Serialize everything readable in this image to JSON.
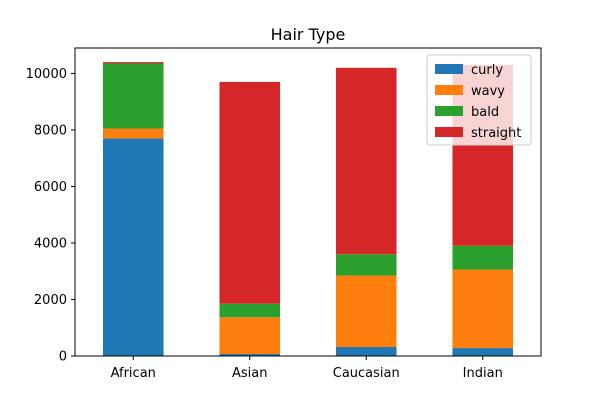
{
  "chart_data": {
    "type": "bar",
    "stacked": true,
    "title": "Hair Type",
    "xlabel": "",
    "ylabel": "",
    "categories": [
      "African",
      "Asian",
      "Caucasian",
      "Indian"
    ],
    "series": [
      {
        "name": "curly",
        "color": "#1f77b4",
        "values": [
          7700,
          70,
          320,
          280
        ]
      },
      {
        "name": "wavy",
        "color": "#ff7f0e",
        "values": [
          350,
          1300,
          2530,
          2780
        ]
      },
      {
        "name": "bald",
        "color": "#2ca02c",
        "values": [
          2300,
          480,
          750,
          840
        ]
      },
      {
        "name": "straight",
        "color": "#d62728",
        "values": [
          50,
          7850,
          6600,
          6400
        ]
      }
    ],
    "ylim": [
      0,
      10900
    ],
    "yticks": [
      0,
      2000,
      4000,
      6000,
      8000,
      10000
    ],
    "ytick_labels": [
      "0",
      "2000",
      "4000",
      "6000",
      "8000",
      "10000"
    ],
    "grid": false,
    "legend_position": "top-right"
  }
}
